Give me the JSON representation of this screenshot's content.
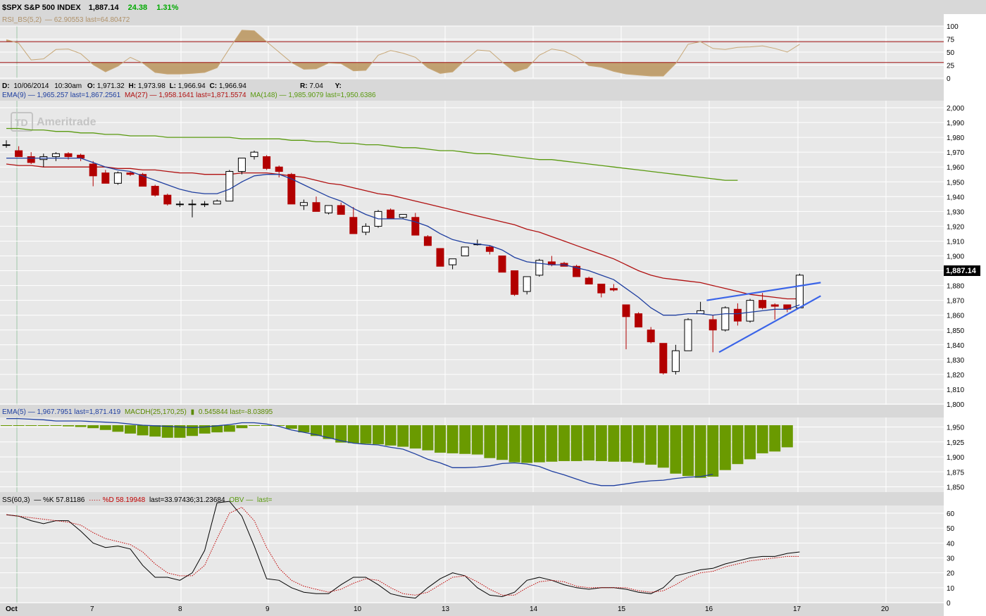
{
  "header": {
    "symbol": "$SPX S&P 500 INDEX",
    "price": "1,887.14",
    "change": "24.38",
    "change_pct": "1.31%",
    "change_color": "#00aa00"
  },
  "rsi": {
    "legend": "RSI_BS(5,2)",
    "values_text": "62.90553 last=64.80472",
    "upper_band": 70,
    "lower_band": 30,
    "ticks": [
      "100",
      "75",
      "50",
      "25",
      "0"
    ],
    "color": "#c8a878",
    "fill_color": "#b8935a"
  },
  "info": {
    "date_label": "D:",
    "date": "10/06/2014",
    "time": "10:30am",
    "open_label": "O:",
    "open": "1,971.32",
    "high_label": "H:",
    "high": "1,973.98",
    "low_label": "L:",
    "low": "1,966.94",
    "close_label": "C:",
    "close": "1,966.94",
    "r_label": "R:",
    "r": "7.04",
    "y_label": "Y:"
  },
  "overlays": {
    "ema9": {
      "label": "EMA(9)",
      "text": "1,965.257 last=1,867.2561",
      "color": "#1f3fa0"
    },
    "ma27": {
      "label": "MA(27)",
      "text": "1,958.1641 last=1,871.5574",
      "color": "#b01010"
    },
    "ma148": {
      "label": "MA(148)",
      "text": "1,985.9079 last=1,950.6386",
      "color": "#5a9a10"
    }
  },
  "watermark": "Ameritrade",
  "price_axis": {
    "ticks": [
      "2,000",
      "1,990",
      "1,980",
      "1,970",
      "1,960",
      "1,950",
      "1,940",
      "1,930",
      "1,920",
      "1,910",
      "1,900",
      "1,890",
      "1,880",
      "1,870",
      "1,860",
      "1,850",
      "1,840",
      "1,830",
      "1,820",
      "1,810",
      "1,800"
    ],
    "last_badge": "1,887.14"
  },
  "macd": {
    "ema_label": "EMA(5)",
    "ema_text": "1,967.7951 last=1,871.419",
    "macdh_label": "MACDH(25,170,25)",
    "macdh_text": "0.545844 last=-8.03895",
    "ticks": [
      "1,950",
      "1,925",
      "1,900",
      "1,875",
      "1,850"
    ],
    "bar_color": "#6a9a00",
    "line_color": "#1f3fa0"
  },
  "stoch": {
    "label": "SS(60,3)",
    "k_text": "%K 57.81186",
    "d_text": "%D 58.19948",
    "last_text": "last=33.97436;31.23684",
    "obv_label": "OBV",
    "obv_text": "last=",
    "ticks": [
      "60",
      "50",
      "40",
      "30",
      "20",
      "10",
      "0"
    ],
    "k_color": "#000000",
    "d_color": "#c00000"
  },
  "x_axis": {
    "labels": [
      "Oct",
      "7",
      "8",
      "9",
      "10",
      "13",
      "14",
      "15",
      "16",
      "17",
      "20"
    ]
  },
  "chart_data": {
    "type": "candlestick",
    "interval": "intraday",
    "x_labels": [
      "Oct",
      "7",
      "8",
      "9",
      "10",
      "13",
      "14",
      "15",
      "16",
      "17",
      "20"
    ],
    "price_ylim": [
      1800,
      2000
    ],
    "candles": [
      {
        "o": 1975,
        "h": 1978,
        "l": 1973,
        "c": 1975
      },
      {
        "o": 1971,
        "h": 1974,
        "l": 1967,
        "c": 1967
      },
      {
        "o": 1967,
        "h": 1970,
        "l": 1962,
        "c": 1963
      },
      {
        "o": 1965,
        "h": 1969,
        "l": 1960,
        "c": 1967
      },
      {
        "o": 1967,
        "h": 1970,
        "l": 1964,
        "c": 1969
      },
      {
        "o": 1969,
        "h": 1970,
        "l": 1965,
        "c": 1967
      },
      {
        "o": 1968,
        "h": 1969,
        "l": 1964,
        "c": 1966
      },
      {
        "o": 1962,
        "h": 1964,
        "l": 1947,
        "c": 1954
      },
      {
        "o": 1956,
        "h": 1958,
        "l": 1949,
        "c": 1949
      },
      {
        "o": 1949,
        "h": 1957,
        "l": 1948,
        "c": 1956
      },
      {
        "o": 1956,
        "h": 1957,
        "l": 1954,
        "c": 1955
      },
      {
        "o": 1955,
        "h": 1956,
        "l": 1947,
        "c": 1947
      },
      {
        "o": 1947,
        "h": 1948,
        "l": 1940,
        "c": 1941
      },
      {
        "o": 1941,
        "h": 1942,
        "l": 1934,
        "c": 1935
      },
      {
        "o": 1935,
        "h": 1937,
        "l": 1933,
        "c": 1935
      },
      {
        "o": 1935,
        "h": 1938,
        "l": 1926,
        "c": 1935
      },
      {
        "o": 1935,
        "h": 1937,
        "l": 1933,
        "c": 1935
      },
      {
        "o": 1935,
        "h": 1938,
        "l": 1935,
        "c": 1937
      },
      {
        "o": 1937,
        "h": 1958,
        "l": 1937,
        "c": 1957
      },
      {
        "o": 1957,
        "h": 1966,
        "l": 1955,
        "c": 1966
      },
      {
        "o": 1967,
        "h": 1971,
        "l": 1965,
        "c": 1970
      },
      {
        "o": 1967,
        "h": 1968,
        "l": 1958,
        "c": 1959
      },
      {
        "o": 1960,
        "h": 1961,
        "l": 1953,
        "c": 1957
      },
      {
        "o": 1955,
        "h": 1956,
        "l": 1935,
        "c": 1935
      },
      {
        "o": 1934,
        "h": 1938,
        "l": 1931,
        "c": 1936
      },
      {
        "o": 1936,
        "h": 1940,
        "l": 1930,
        "c": 1930
      },
      {
        "o": 1929,
        "h": 1934,
        "l": 1928,
        "c": 1934
      },
      {
        "o": 1934,
        "h": 1936,
        "l": 1928,
        "c": 1928
      },
      {
        "o": 1926,
        "h": 1933,
        "l": 1915,
        "c": 1915
      },
      {
        "o": 1916,
        "h": 1922,
        "l": 1914,
        "c": 1920
      },
      {
        "o": 1920,
        "h": 1931,
        "l": 1919,
        "c": 1930
      },
      {
        "o": 1931,
        "h": 1932,
        "l": 1925,
        "c": 1925
      },
      {
        "o": 1926,
        "h": 1928,
        "l": 1925,
        "c": 1928
      },
      {
        "o": 1926,
        "h": 1929,
        "l": 1914,
        "c": 1914
      },
      {
        "o": 1913,
        "h": 1914,
        "l": 1907,
        "c": 1907
      },
      {
        "o": 1905,
        "h": 1905,
        "l": 1893,
        "c": 1893
      },
      {
        "o": 1894,
        "h": 1898,
        "l": 1891,
        "c": 1898
      },
      {
        "o": 1900,
        "h": 1906,
        "l": 1900,
        "c": 1906
      },
      {
        "o": 1908,
        "h": 1911,
        "l": 1907,
        "c": 1908
      },
      {
        "o": 1906,
        "h": 1907,
        "l": 1901,
        "c": 1903
      },
      {
        "o": 1900,
        "h": 1900,
        "l": 1889,
        "c": 1889
      },
      {
        "o": 1890,
        "h": 1890,
        "l": 1873,
        "c": 1874
      },
      {
        "o": 1876,
        "h": 1886,
        "l": 1874,
        "c": 1886
      },
      {
        "o": 1887,
        "h": 1898,
        "l": 1886,
        "c": 1897
      },
      {
        "o": 1896,
        "h": 1900,
        "l": 1893,
        "c": 1894
      },
      {
        "o": 1895,
        "h": 1896,
        "l": 1893,
        "c": 1893
      },
      {
        "o": 1893,
        "h": 1894,
        "l": 1886,
        "c": 1886
      },
      {
        "o": 1885,
        "h": 1886,
        "l": 1881,
        "c": 1881
      },
      {
        "o": 1881,
        "h": 1881,
        "l": 1872,
        "c": 1875
      },
      {
        "o": 1878,
        "h": 1881,
        "l": 1876,
        "c": 1877
      },
      {
        "o": 1867,
        "h": 1867,
        "l": 1837,
        "c": 1859
      },
      {
        "o": 1861,
        "h": 1862,
        "l": 1852,
        "c": 1852
      },
      {
        "o": 1850,
        "h": 1852,
        "l": 1841,
        "c": 1842
      },
      {
        "o": 1841,
        "h": 1841,
        "l": 1820,
        "c": 1821
      },
      {
        "o": 1822,
        "h": 1840,
        "l": 1820,
        "c": 1836
      },
      {
        "o": 1836,
        "h": 1858,
        "l": 1836,
        "c": 1857
      },
      {
        "o": 1861,
        "h": 1869,
        "l": 1861,
        "c": 1863
      },
      {
        "o": 1857,
        "h": 1860,
        "l": 1835,
        "c": 1850
      },
      {
        "o": 1850,
        "h": 1866,
        "l": 1849,
        "c": 1865
      },
      {
        "o": 1864,
        "h": 1868,
        "l": 1853,
        "c": 1856
      },
      {
        "o": 1856,
        "h": 1871,
        "l": 1855,
        "c": 1870
      },
      {
        "o": 1870,
        "h": 1875,
        "l": 1864,
        "c": 1865
      },
      {
        "o": 1867,
        "h": 1868,
        "l": 1857,
        "c": 1866
      },
      {
        "o": 1867,
        "h": 1867,
        "l": 1862,
        "c": 1864
      },
      {
        "o": 1865,
        "h": 1888,
        "l": 1865,
        "c": 1887
      }
    ],
    "ema9": [
      1966,
      1966,
      1966,
      1966,
      1966,
      1966,
      1966,
      1963,
      1960,
      1958,
      1957,
      1954,
      1951,
      1948,
      1945,
      1943,
      1942,
      1942,
      1945,
      1950,
      1954,
      1955,
      1955,
      1952,
      1948,
      1944,
      1940,
      1937,
      1932,
      1928,
      1925,
      1925,
      1925,
      1923,
      1920,
      1915,
      1911,
      1909,
      1908,
      1907,
      1904,
      1899,
      1896,
      1895,
      1894,
      1894,
      1892,
      1890,
      1887,
      1884,
      1878,
      1872,
      1865,
      1860,
      1860,
      1861,
      1861,
      1860,
      1861,
      1861,
      1862,
      1863,
      1864,
      1864,
      1867
    ],
    "ma27": [
      1962,
      1961,
      1961,
      1960,
      1960,
      1960,
      1960,
      1960,
      1960,
      1959,
      1959,
      1958,
      1958,
      1957,
      1956,
      1956,
      1955,
      1955,
      1955,
      1956,
      1956,
      1956,
      1955,
      1954,
      1953,
      1951,
      1949,
      1948,
      1946,
      1944,
      1942,
      1941,
      1939,
      1937,
      1935,
      1933,
      1931,
      1929,
      1927,
      1925,
      1923,
      1921,
      1918,
      1916,
      1913,
      1910,
      1907,
      1904,
      1901,
      1898,
      1894,
      1890,
      1887,
      1885,
      1884,
      1883,
      1882,
      1880,
      1878,
      1876,
      1874,
      1873,
      1872,
      1871,
      1871
    ],
    "ma148": [
      1986,
      1986,
      1985,
      1985,
      1984,
      1984,
      1983,
      1983,
      1982,
      1982,
      1981,
      1981,
      1981,
      1980,
      1980,
      1980,
      1980,
      1980,
      1980,
      1979,
      1979,
      1979,
      1979,
      1978,
      1978,
      1977,
      1977,
      1976,
      1976,
      1975,
      1975,
      1974,
      1973,
      1973,
      1972,
      1971,
      1971,
      1970,
      1969,
      1969,
      1968,
      1967,
      1966,
      1965,
      1965,
      1964,
      1963,
      1962,
      1961,
      1960,
      1959,
      1958,
      1957,
      1956,
      1955,
      1954,
      1953,
      1952,
      1951,
      1951
    ],
    "trendlines": [
      {
        "x0": 56.5,
        "y0": 1870,
        "x1": 65.7,
        "y1": 1882
      },
      {
        "x0": 57.5,
        "y0": 1835,
        "x1": 65.7,
        "y1": 1873
      }
    ],
    "rsi_ylim": [
      0,
      100
    ],
    "rsi": [
      74,
      67,
      35,
      37,
      55,
      56,
      47,
      26,
      12,
      23,
      40,
      29,
      11,
      8,
      8,
      9,
      11,
      20,
      57,
      92,
      91,
      70,
      50,
      30,
      17,
      18,
      29,
      28,
      14,
      15,
      44,
      53,
      48,
      40,
      20,
      9,
      12,
      34,
      54,
      52,
      31,
      12,
      19,
      44,
      56,
      52,
      41,
      24,
      21,
      13,
      8,
      6,
      4,
      4,
      28,
      65,
      70,
      57,
      55,
      59,
      60,
      62,
      57,
      50,
      65
    ],
    "macd_ylim": [
      1840,
      1960
    ],
    "macdh": [
      1955,
      1954,
      1953,
      1953,
      1952,
      1951,
      1950,
      1948,
      1945,
      1942,
      1939,
      1936,
      1934,
      1932,
      1932,
      1935,
      1939,
      1941,
      1942,
      1948,
      1954,
      1955,
      1952,
      1947,
      1941,
      1935,
      1930,
      1924,
      1923,
      1922,
      1921,
      1919,
      1917,
      1914,
      1911,
      1907,
      1906,
      1905,
      1904,
      1898,
      1895,
      1891,
      1890,
      1891,
      1892,
      1893,
      1893,
      1894,
      1893,
      1892,
      1892,
      1890,
      1887,
      1882,
      1872,
      1868,
      1865,
      1867,
      1878,
      1888,
      1896,
      1906,
      1909,
      1916
    ],
    "macd_ema5": [
      1964,
      1964,
      1963,
      1962,
      1960,
      1960,
      1960,
      1959,
      1958,
      1957,
      1955,
      1953,
      1952,
      1951,
      1950,
      1949,
      1950,
      1952,
      1954,
      1957,
      1957,
      1955,
      1951,
      1945,
      1941,
      1937,
      1932,
      1927,
      1923,
      1921,
      1920,
      1916,
      1913,
      1905,
      1896,
      1890,
      1882,
      1882,
      1883,
      1885,
      1889,
      1890,
      1888,
      1884,
      1876,
      1870,
      1863,
      1856,
      1852,
      1852,
      1855,
      1858,
      1860,
      1861,
      1864,
      1866,
      1867,
      1871
    ],
    "stoch_ylim": [
      0,
      60
    ],
    "stoch_k": [
      59,
      58,
      55,
      53,
      55,
      55,
      48,
      40,
      37,
      38,
      36,
      25,
      17,
      17,
      15,
      20,
      35,
      67,
      68,
      58,
      38,
      16,
      15,
      10,
      7,
      6,
      6,
      12,
      17,
      17,
      12,
      6,
      4,
      3,
      10,
      16,
      20,
      18,
      10,
      5,
      4,
      7,
      15,
      17,
      15,
      12,
      10,
      9,
      10,
      10,
      9,
      7,
      6,
      10,
      18,
      20,
      22,
      23,
      26,
      28,
      30,
      31,
      31,
      33,
      34
    ],
    "stoch_d": [
      59,
      58,
      57,
      56,
      55,
      54,
      52,
      47,
      43,
      41,
      39,
      34,
      26,
      20,
      18,
      18,
      25,
      43,
      60,
      64,
      55,
      37,
      23,
      15,
      11,
      9,
      7,
      9,
      13,
      16,
      15,
      10,
      6,
      5,
      7,
      12,
      17,
      18,
      14,
      9,
      5,
      5,
      10,
      14,
      15,
      14,
      11,
      10,
      10,
      10,
      10,
      8,
      7,
      8,
      12,
      17,
      20,
      21,
      24,
      26,
      28,
      29,
      30,
      31,
      31
    ]
  }
}
